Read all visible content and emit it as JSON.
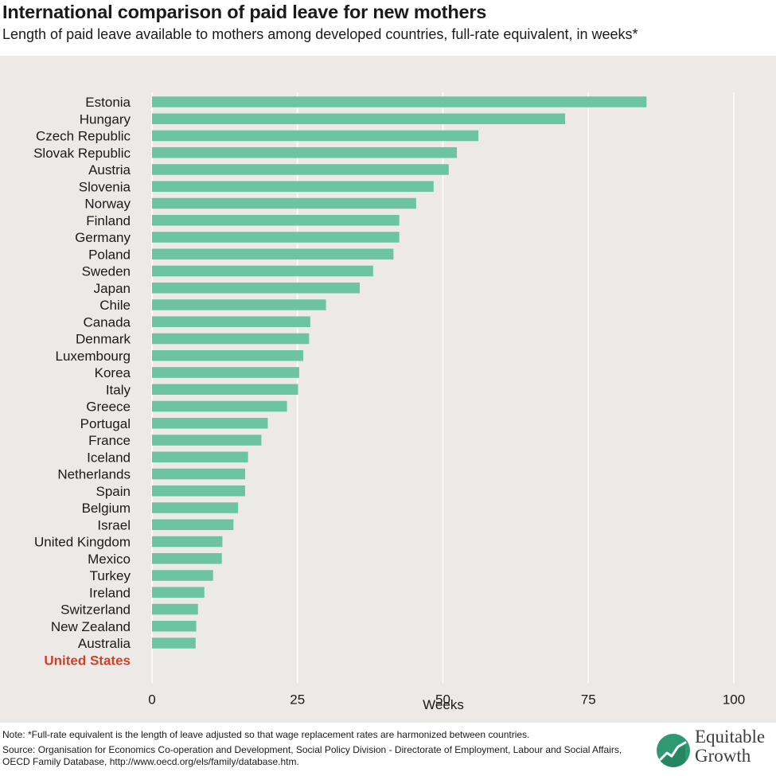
{
  "header": {
    "title": "International comparison of paid leave for new mothers",
    "subtitle": "Length of paid leave available to mothers among developed countries, full-rate equivalent, in weeks*"
  },
  "footer": {
    "note": "Note: *Full-rate equivalent is the length of leave adjusted so that wage replacement rates are harmonized between countries.",
    "source": "Source: Organisation for Economics Co-operation and Development, Social Policy Division - Directorate of Employment, Labour and Social Affairs, OECD Family Database, http://www.oecd.org/els/family/database.htm.",
    "logo_line1": "Equitable",
    "logo_line2": "Growth",
    "logo_icon": "growth-chart-icon"
  },
  "colors": {
    "bar": "#6cc4a4",
    "highlight_label": "#c8442c",
    "plot_background": "#ece9e7",
    "gridline": "#ffffff",
    "logo_green": "#2f9a72"
  },
  "chart_data": {
    "type": "bar",
    "orientation": "horizontal",
    "title": "International comparison of paid leave for new mothers",
    "subtitle": "Length of paid leave available to mothers among developed countries, full-rate equivalent, in weeks*",
    "xlabel": "Weeks",
    "ylabel": "",
    "xlim": [
      0,
      100
    ],
    "xticks": [
      0,
      25,
      50,
      75,
      100
    ],
    "grid": true,
    "highlight_category": "United States",
    "categories": [
      "Estonia",
      "Hungary",
      "Czech Republic",
      "Slovak Republic",
      "Austria",
      "Slovenia",
      "Norway",
      "Finland",
      "Germany",
      "Poland",
      "Sweden",
      "Japan",
      "Chile",
      "Canada",
      "Denmark",
      "Luxembourg",
      "Korea",
      "Italy",
      "Greece",
      "Portugal",
      "France",
      "Iceland",
      "Netherlands",
      "Spain",
      "Belgium",
      "Israel",
      "United Kingdom",
      "Mexico",
      "Turkey",
      "Ireland",
      "Switzerland",
      "New Zealand",
      "Australia",
      "United States"
    ],
    "values": [
      85.0,
      71.0,
      56.1,
      52.4,
      51.0,
      48.4,
      45.4,
      42.5,
      42.5,
      41.5,
      38.0,
      35.7,
      29.9,
      27.2,
      27.0,
      26.0,
      25.3,
      25.1,
      23.2,
      19.9,
      18.8,
      16.5,
      16.0,
      16.0,
      14.8,
      14.0,
      12.1,
      12.0,
      10.5,
      9.0,
      7.9,
      7.6,
      7.5,
      0
    ]
  }
}
